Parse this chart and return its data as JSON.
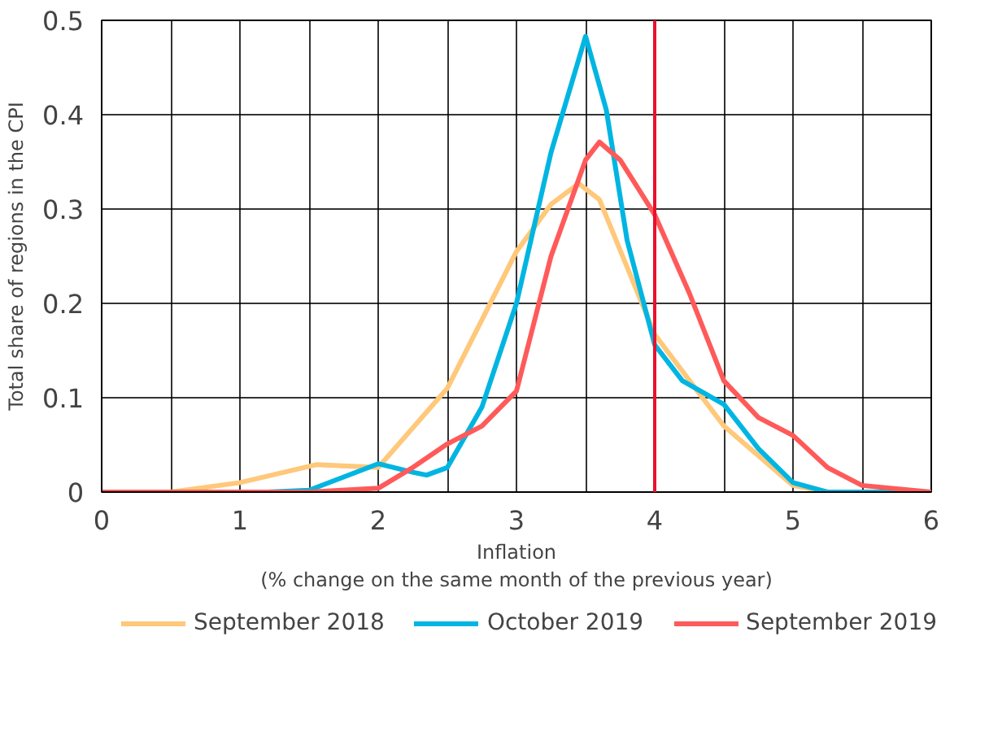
{
  "chart_data": {
    "type": "line",
    "xlabel": "Inflation\n(% change on the same month of the previous year)",
    "ylabel": "Total share of regions in the CPI",
    "xlim": [
      0,
      6
    ],
    "ylim": [
      0,
      0.5
    ],
    "xticks": [
      0,
      {
        "value": 0.5,
        "label": null
      },
      1,
      {
        "value": 1.5,
        "label": null
      },
      2,
      {
        "value": 2.5,
        "label": null
      },
      3,
      {
        "value": 3.5,
        "label": null
      },
      4,
      {
        "value": 4.5,
        "label": null
      },
      5,
      {
        "value": 5.5,
        "label": null
      },
      6
    ],
    "yticks": [
      0,
      0.1,
      0.2,
      0.3,
      0.4,
      0.5
    ],
    "grid": true,
    "legend": "bottom",
    "line_style": "solid",
    "marker": "none",
    "ref_lines": [
      {
        "axis": "x",
        "value": 4,
        "color": "#e8112d"
      }
    ],
    "series": [
      {
        "name": "September 2018",
        "color": "#ffc87a",
        "x": [
          0,
          0.5,
          1,
          1.55,
          2,
          2.5,
          3,
          3.25,
          3.45,
          3.6,
          4,
          4.5,
          5,
          5.25,
          6
        ],
        "values": [
          0,
          0,
          0.01,
          0.029,
          0.026,
          0.11,
          0.255,
          0.305,
          0.327,
          0.31,
          0.167,
          0.07,
          0.007,
          0,
          0
        ]
      },
      {
        "name": "October 2019",
        "color": "#00b5e2",
        "x": [
          0,
          1.2,
          1.5,
          2,
          2.25,
          2.35,
          2.5,
          2.75,
          3,
          3.25,
          3.5,
          3.65,
          3.8,
          4,
          4.2,
          4.5,
          4.75,
          5,
          5.25,
          6
        ],
        "values": [
          0,
          0,
          0.002,
          0.03,
          0.021,
          0.018,
          0.026,
          0.09,
          0.2,
          0.36,
          0.483,
          0.405,
          0.267,
          0.156,
          0.118,
          0.093,
          0.046,
          0.01,
          0,
          0
        ]
      },
      {
        "name": "September 2019",
        "color": "#ff5a5a",
        "x": [
          0,
          1.5,
          2,
          2.25,
          2.5,
          2.75,
          3,
          3.25,
          3.5,
          3.6,
          3.75,
          4,
          4.25,
          4.5,
          4.75,
          5,
          5.25,
          5.5,
          6
        ],
        "values": [
          0,
          0,
          0.004,
          0.026,
          0.051,
          0.07,
          0.107,
          0.25,
          0.352,
          0.371,
          0.352,
          0.294,
          0.211,
          0.118,
          0.079,
          0.06,
          0.026,
          0.007,
          0
        ]
      }
    ]
  }
}
